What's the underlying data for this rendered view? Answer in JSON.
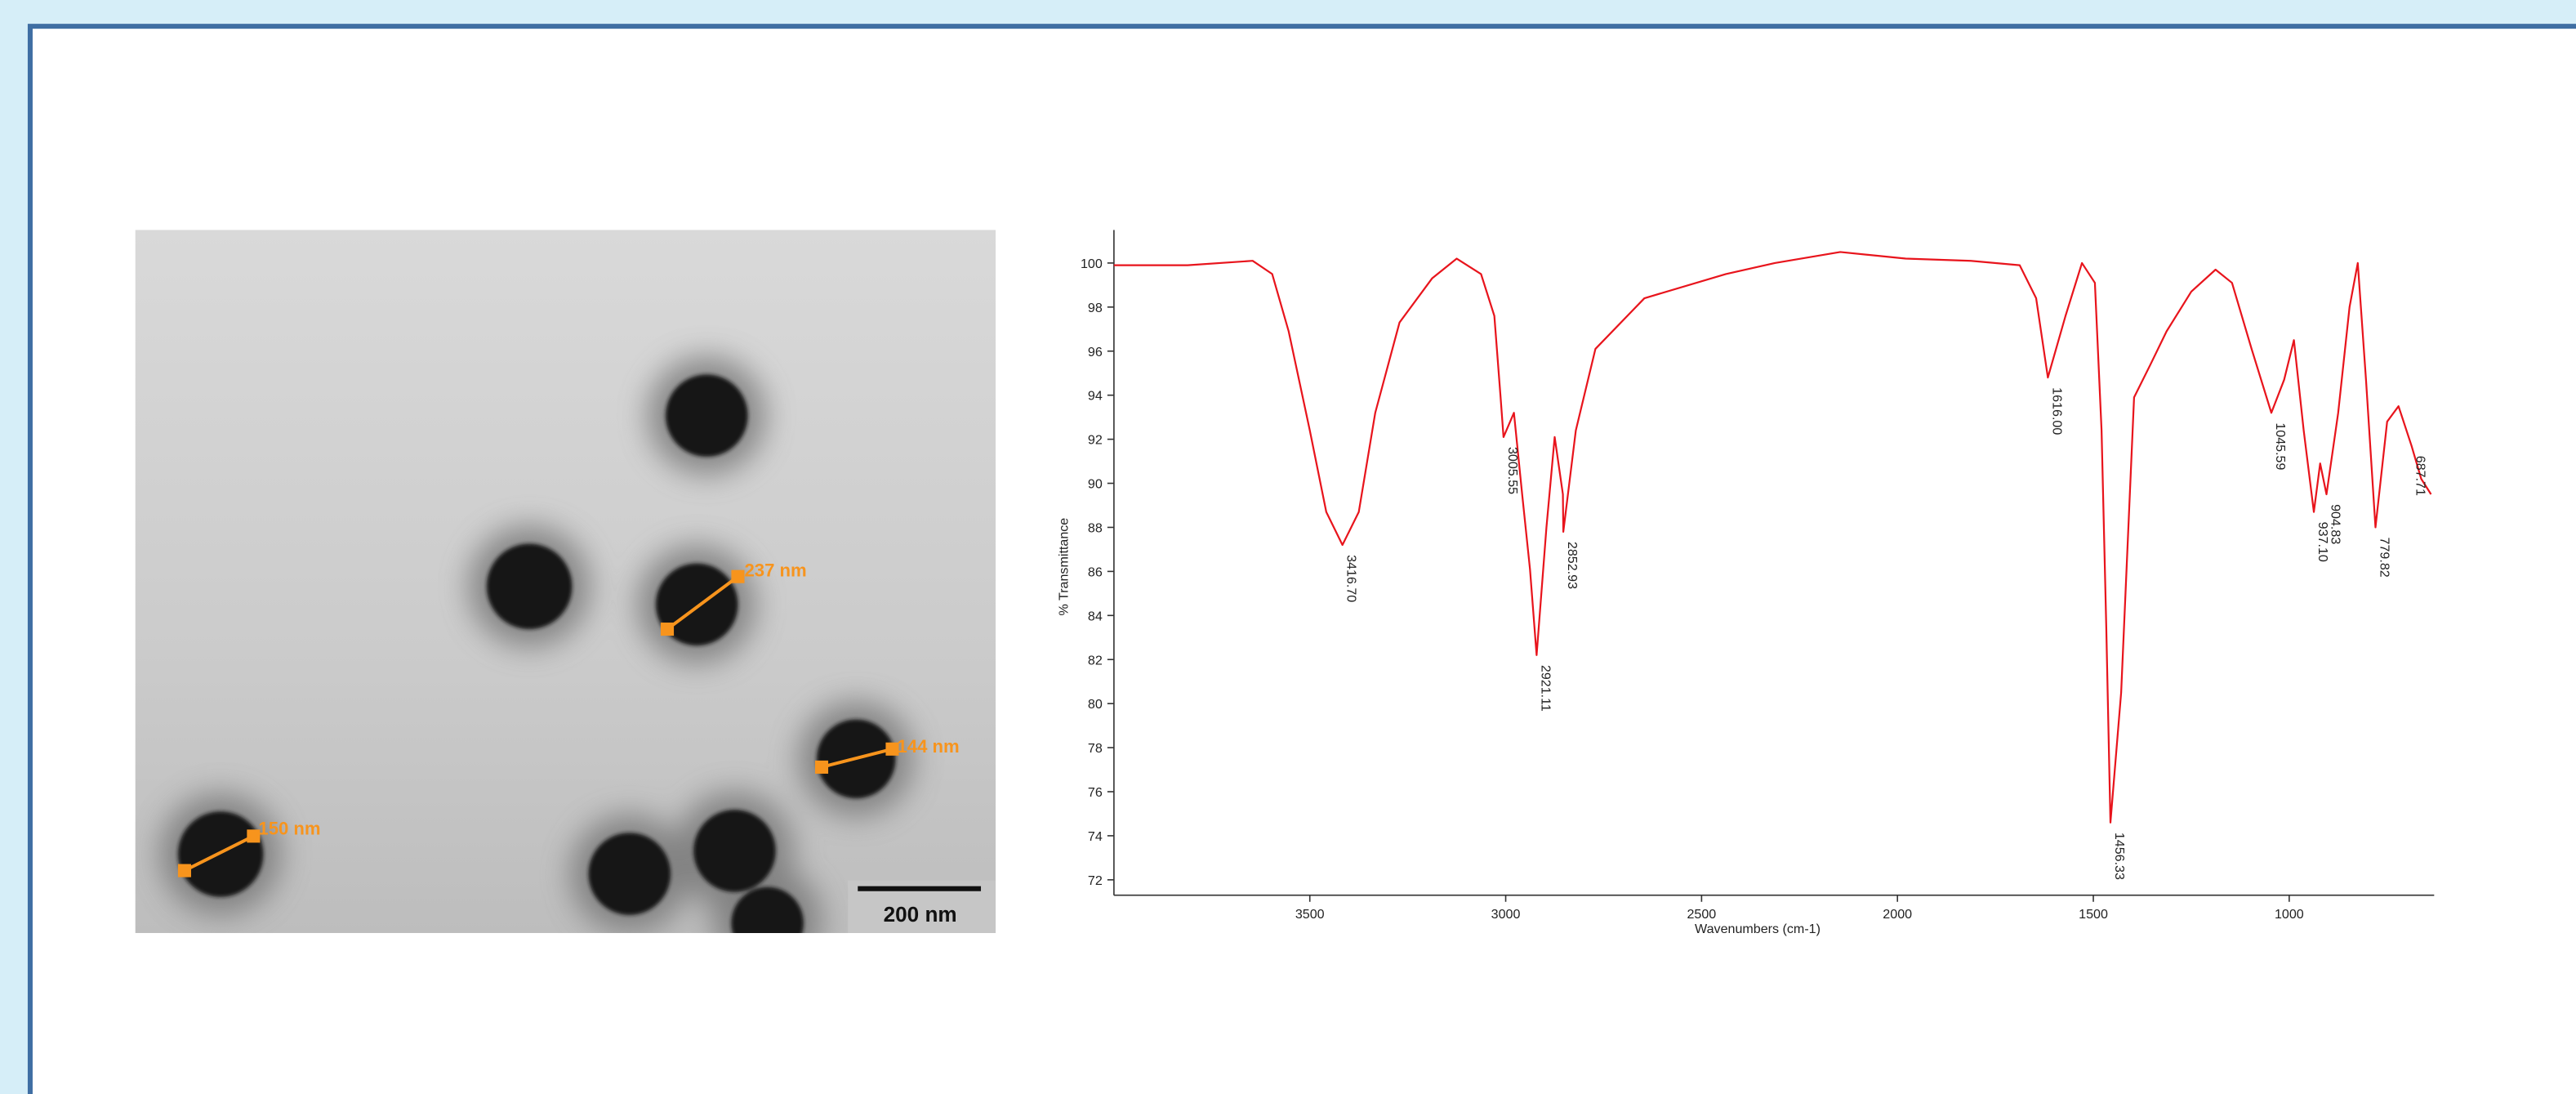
{
  "image": {
    "measurements": [
      "237 nm",
      "144 nm",
      "150 nm"
    ],
    "scale_bar": "200 nm"
  },
  "chart_data": {
    "type": "line",
    "x_label": "Wavenumbers (cm-1)",
    "y_label": "% Transmittance",
    "color": "#e8141c",
    "x": [
      4000,
      3812,
      3646,
      3596,
      3554,
      3500,
      3458,
      3416.7,
      3375,
      3333,
      3271,
      3188,
      3125,
      3063,
      3029,
      3013,
      3005.55,
      2979,
      2958,
      2938,
      2921.11,
      2896,
      2875,
      2854,
      2852.93,
      2821,
      2771,
      2646,
      2438,
      2313,
      2146,
      1979,
      1813,
      1688,
      1646,
      1616.0,
      1571,
      1529,
      1496,
      1479,
      1467,
      1456.33,
      1429,
      1396,
      1354,
      1313,
      1250,
      1188,
      1146,
      1096,
      1045.59,
      1013,
      988,
      963,
      937.1,
      921,
      904.83,
      875,
      846,
      825,
      804,
      779.82,
      750,
      721,
      687.71,
      663,
      638
    ],
    "values": [
      99.9,
      99.9,
      100.1,
      99.5,
      96.9,
      92.4,
      88.7,
      87.2,
      88.7,
      93.2,
      97.3,
      99.3,
      100.2,
      99.5,
      97.6,
      93.9,
      92.1,
      93.2,
      89.5,
      86.1,
      82.2,
      88.0,
      92.1,
      89.5,
      87.8,
      92.4,
      96.1,
      98.4,
      99.5,
      100,
      100.5,
      100.2,
      100.1,
      99.9,
      98.4,
      94.8,
      97.6,
      100,
      99.1,
      92.4,
      83.5,
      74.6,
      80.5,
      93.9,
      95.4,
      96.9,
      98.7,
      99.7,
      99.1,
      96.1,
      93.2,
      94.7,
      96.5,
      92.4,
      88.7,
      90.9,
      89.5,
      93.2,
      98,
      100,
      94.7,
      88,
      92.8,
      93.5,
      91.7,
      90.2,
      89.5
    ],
    "xlim": [
      4000,
      630
    ],
    "xticks": [
      3500,
      3000,
      2500,
      2000,
      1500,
      1000
    ],
    "ylim": [
      71.3,
      101.5
    ],
    "yticks": [
      72,
      74,
      76,
      78,
      80,
      82,
      84,
      86,
      88,
      90,
      92,
      94,
      96,
      98,
      100
    ],
    "annotations": [
      {
        "text": "3416.70",
        "x": 3416.7,
        "y": 87.2
      },
      {
        "text": "3005.55",
        "x": 3005.55,
        "y": 92.1
      },
      {
        "text": "2921.11",
        "x": 2921.11,
        "y": 82.2
      },
      {
        "text": "2852.93",
        "x": 2852.93,
        "y": 87.8
      },
      {
        "text": "1616.00",
        "x": 1616.0,
        "y": 94.8
      },
      {
        "text": "1456.33",
        "x": 1456.33,
        "y": 74.6
      },
      {
        "text": "1045.59",
        "x": 1045.59,
        "y": 93.2
      },
      {
        "text": "937.10",
        "x": 937.1,
        "y": 88.7
      },
      {
        "text": "904.83",
        "x": 904.83,
        "y": 89.5
      },
      {
        "text": "779.82",
        "x": 779.82,
        "y": 88
      },
      {
        "text": "687.71",
        "x": 687.71,
        "y": 91.7
      }
    ]
  }
}
